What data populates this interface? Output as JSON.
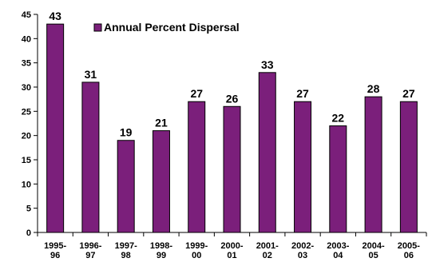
{
  "chart_data": {
    "type": "bar",
    "categories": [
      [
        "1995-",
        "96"
      ],
      [
        "1996-",
        "97"
      ],
      [
        "1997-",
        "98"
      ],
      [
        "1998-",
        "99"
      ],
      [
        "1999-",
        "00"
      ],
      [
        "2000-",
        "01"
      ],
      [
        "2001-",
        "02"
      ],
      [
        "2002-",
        "03"
      ],
      [
        "2003-",
        "04"
      ],
      [
        "2004-",
        "05"
      ],
      [
        "2005-",
        "06"
      ]
    ],
    "series": [
      {
        "name": "Annual Percent Dispersal",
        "values": [
          43,
          31,
          19,
          21,
          27,
          26,
          33,
          27,
          22,
          28,
          27
        ],
        "color": "#7B1F7B"
      }
    ],
    "ylim": [
      0,
      45
    ],
    "yticks": [
      0,
      5,
      10,
      15,
      20,
      25,
      30,
      35,
      40,
      45
    ],
    "grid": false,
    "legend": "top-left",
    "title": "",
    "xlabel": "",
    "ylabel": ""
  }
}
